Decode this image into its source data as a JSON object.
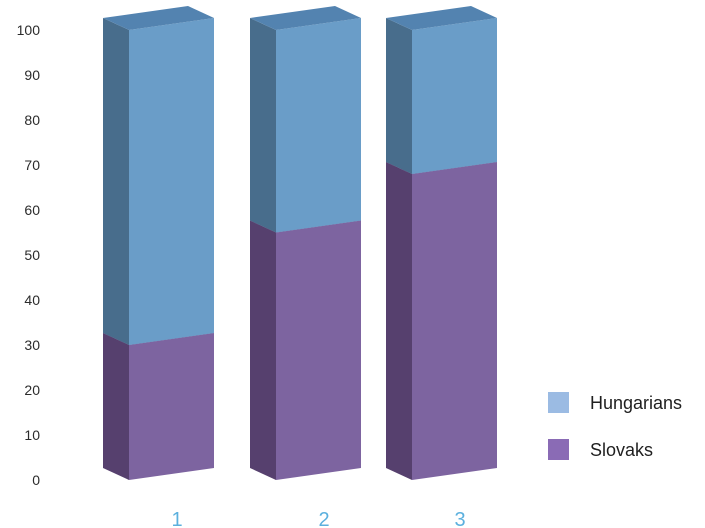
{
  "chart_data": {
    "type": "bar",
    "stacked": true,
    "three_d": true,
    "title": "",
    "xlabel": "",
    "ylabel": "",
    "categories": [
      "1",
      "2",
      "3"
    ],
    "y_ticks": [
      "0",
      "10",
      "20",
      "30",
      "40",
      "50",
      "60",
      "70",
      "80",
      "90",
      "100"
    ],
    "ylim": [
      0,
      100
    ],
    "grid": false,
    "legend_position": "right",
    "series": [
      {
        "name": "Slovaks",
        "values": [
          30,
          55,
          68
        ],
        "color": "#7d64a0"
      },
      {
        "name": "Hungarians",
        "values": [
          70,
          45,
          32
        ],
        "color": "#6a9dc8"
      }
    ]
  },
  "colors": {
    "slovaks_front": "#7d64a0",
    "slovaks_side": "#56406e",
    "slovaks_top": "#664d88",
    "hungarians_front": "#6a9dc8",
    "hungarians_side": "#486d8c",
    "hungarians_top": "#5383b0",
    "legend_hungarians": "#9bbbe3",
    "legend_slovaks": "#8a6bb5",
    "x_tick": "#5bb0de"
  }
}
